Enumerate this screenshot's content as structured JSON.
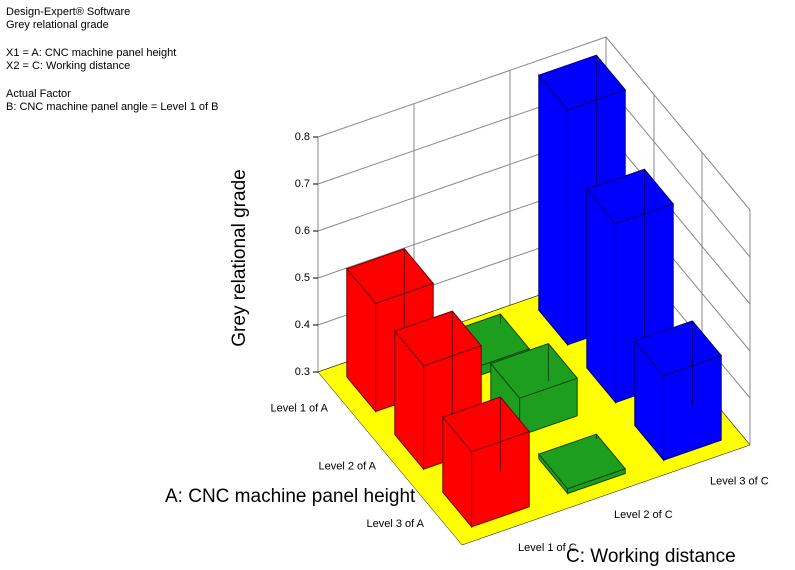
{
  "chart_data": {
    "type": "bar3d",
    "header_lines": [
      "Design-Expert® Software",
      "Grey relational grade",
      "X1 = A: CNC machine panel height",
      "X2 = C: Working distance",
      "Actual Factor",
      "B: CNC machine panel angle = Level 1 of B"
    ],
    "x_label": "A: CNC machine panel height",
    "y_label": "C: Working distance",
    "z_label": "Grey relational grade",
    "categories": [
      "Level 1 of A",
      "Level 2 of A",
      "Level 3 of A"
    ],
    "series": [
      {
        "name": "Level 1 of C",
        "color": "#ff0000",
        "values": [
          0.53,
          0.52,
          0.46
        ]
      },
      {
        "name": "Level 2 of C",
        "color": "#1e9e1e",
        "values": [
          0.32,
          0.38,
          0.31
        ]
      },
      {
        "name": "Level 3 of C",
        "color": "#0000ff",
        "values": [
          0.8,
          0.68,
          0.48
        ]
      }
    ],
    "ylim": [
      0.3,
      0.8
    ],
    "yticks": [
      0.3,
      0.4,
      0.5,
      0.6,
      0.7,
      0.8
    ],
    "floor_color": "#ffff00",
    "grid": true
  }
}
